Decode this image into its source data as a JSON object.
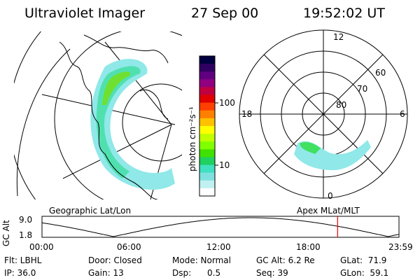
{
  "header": {
    "title": "Ultraviolet Imager",
    "date": "27 Sep 00",
    "time": "19:52:02 UT"
  },
  "left_map": {
    "label": "Geographic Lat/Lon"
  },
  "right_map": {
    "label": "Apex MLat/MLT",
    "mlt_labels": [
      "12",
      "18",
      "6",
      "0"
    ],
    "lat_labels": [
      "60",
      "70",
      "80"
    ]
  },
  "colorbar": {
    "unit_label": "photon cm⁻²s⁻¹",
    "tick_labels": [
      "100",
      "10"
    ],
    "colors": [
      "#000040",
      "#300060",
      "#600080",
      "#900080",
      "#c00040",
      "#e00000",
      "#ff4000",
      "#ff8000",
      "#ffc000",
      "#ffff00",
      "#c0ff00",
      "#80ff00",
      "#40e000",
      "#20d060",
      "#40e0c0",
      "#80e0e0",
      "#c0f0f0",
      "#ffffff"
    ]
  },
  "altitude_plot": {
    "ylabel": "GC Alt",
    "yticks": [
      "9.0",
      "1.8"
    ],
    "xticks": [
      "00:00",
      "06:00",
      "12:00",
      "18:00",
      "23:59"
    ],
    "current_time_marker_color": "#e00000",
    "current_time_fraction": 0.828
  },
  "status": {
    "row1": [
      {
        "key": "flt",
        "text": "Flt: LBHL"
      },
      {
        "key": "door",
        "text": "Door: Closed"
      },
      {
        "key": "mode",
        "text": "Mode: Normal"
      },
      {
        "key": "gcalt",
        "text": "GC Alt: 6.2 Re"
      },
      {
        "key": "glat",
        "text": "GLat:  71.9"
      }
    ],
    "row2": [
      {
        "key": "ip",
        "text": "IP: 36.0"
      },
      {
        "key": "gain",
        "text": "Gain: 13"
      },
      {
        "key": "dsp",
        "text": "Dsp:      0.5"
      },
      {
        "key": "seq",
        "text": "Seq: 39"
      },
      {
        "key": "glon",
        "text": "GLon:  59.1"
      }
    ]
  }
}
